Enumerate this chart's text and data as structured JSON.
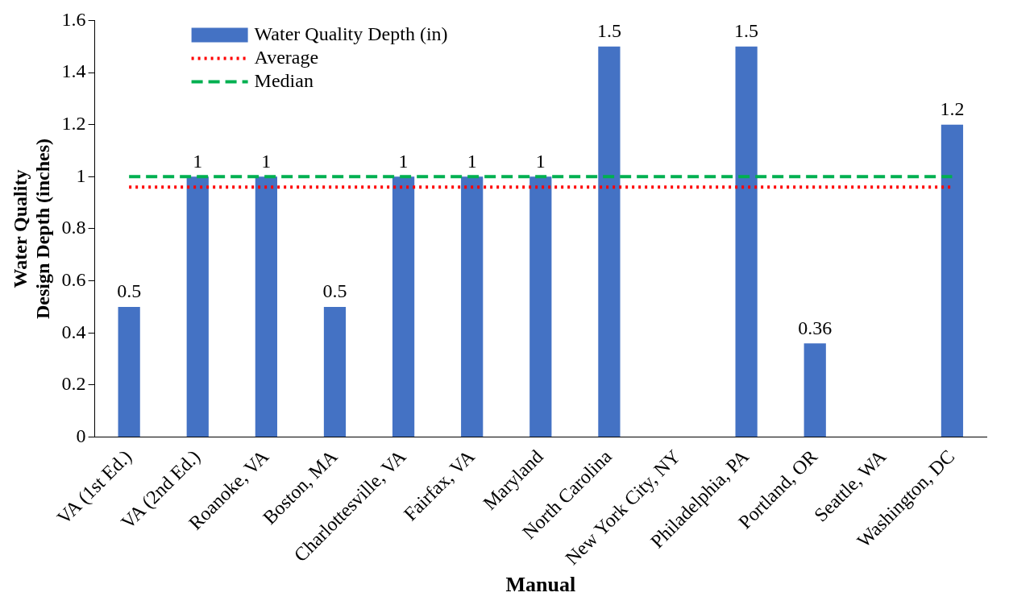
{
  "chart_data": {
    "type": "bar",
    "xlabel": "Manual",
    "ylabel": "Water Quality\nDesign Depth (inches)",
    "categories": [
      "VA (1st Ed.)",
      "VA (2nd Ed.)",
      "Roanoke, VA",
      "Boston, MA",
      "Charlottesville, VA",
      "Fairfax, VA",
      "Maryland",
      "North Carolina",
      "New York City, NY",
      "Philadelphia, PA",
      "Portland, OR",
      "Seattle, WA",
      "Washington, DC"
    ],
    "series": [
      {
        "name": "Water Quality Depth (in)",
        "color": "#4472c4",
        "values": [
          0.5,
          1,
          1,
          0.5,
          1,
          1,
          1,
          1.5,
          null,
          1.5,
          0.36,
          null,
          1.2
        ],
        "value_labels": [
          "0.5",
          "1",
          "1",
          "0.5",
          "1",
          "1",
          "1",
          "1.5",
          null,
          "1.5",
          "0.36",
          null,
          "1.2"
        ]
      },
      {
        "name": "Average",
        "type": "line",
        "color": "#ff0000",
        "line_style": "dotted",
        "values": [
          0.96,
          0.96,
          0.96,
          0.96,
          0.96,
          0.96,
          0.96,
          0.96,
          0.96,
          0.96,
          0.96,
          0.96,
          0.96
        ]
      },
      {
        "name": "Median",
        "type": "line",
        "color": "#00b050",
        "line_style": "dashed",
        "values": [
          1,
          1,
          1,
          1,
          1,
          1,
          1,
          1,
          1,
          1,
          1,
          1,
          1
        ]
      }
    ],
    "ylim": [
      0,
      1.6
    ],
    "yticks": [
      0,
      0.2,
      0.4,
      0.6,
      0.8,
      1,
      1.2,
      1.4,
      1.6
    ],
    "grid": false,
    "legend": "top left",
    "marker": "none"
  }
}
